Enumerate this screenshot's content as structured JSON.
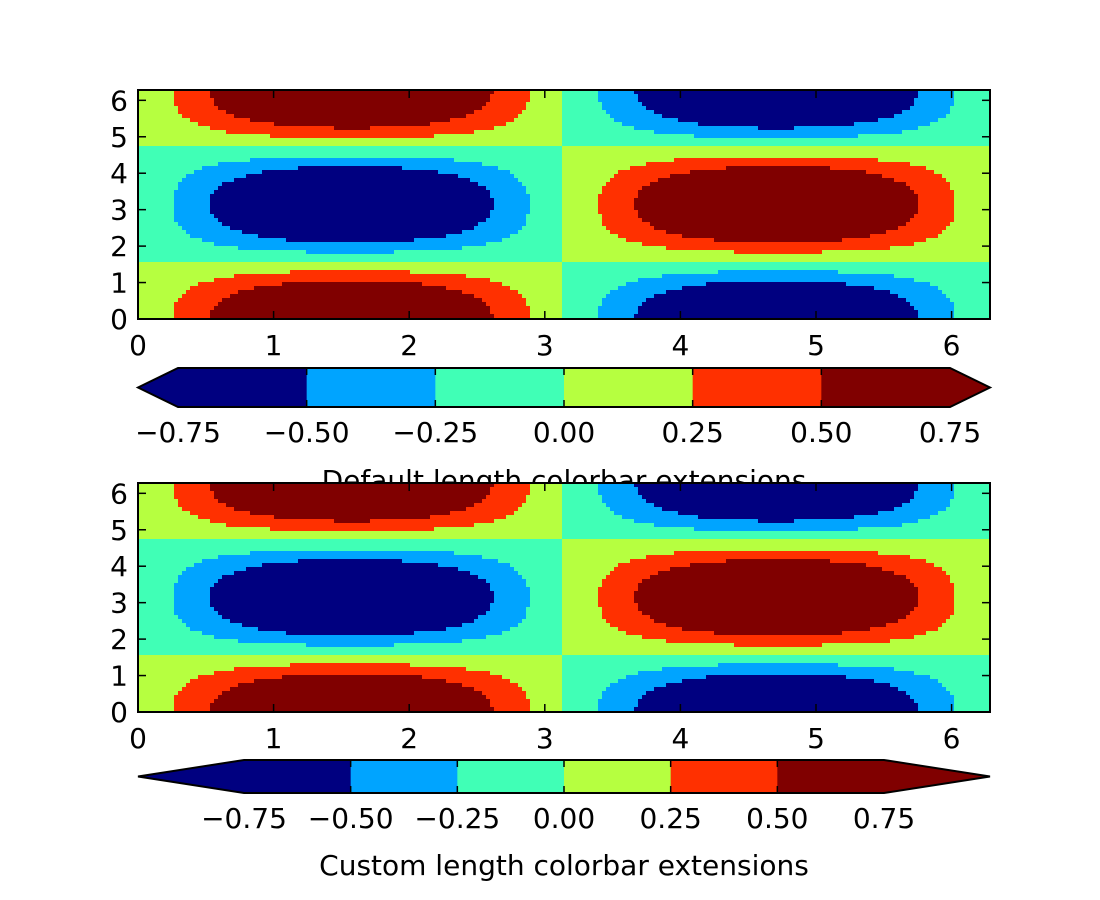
{
  "chart_data": [
    {
      "type": "contour",
      "function": "sin(x)*cos(y)",
      "x_range": [
        0,
        6.2832
      ],
      "y_range": [
        0,
        6.2832
      ],
      "xticks": [
        "0",
        "1",
        "2",
        "3",
        "4",
        "5",
        "6"
      ],
      "yticks": [
        "0",
        "1",
        "2",
        "3",
        "4",
        "5",
        "6"
      ],
      "levels": [
        -1.0,
        -0.75,
        -0.5,
        -0.25,
        0.0,
        0.25,
        0.5,
        0.75,
        1.0
      ],
      "level_colors": [
        "#000080",
        "#00A4FF",
        "#40FFB6",
        "#B6FF40",
        "#FF3000",
        "#800000"
      ],
      "colorbar": {
        "boundaries": [
          -0.75,
          -0.5,
          -0.25,
          0.0,
          0.25,
          0.5,
          0.75
        ],
        "colors": [
          "#000080",
          "#00A4FF",
          "#40FFB6",
          "#B6FF40",
          "#FF3000",
          "#800000"
        ],
        "ticks": [
          "−0.75",
          "−0.50",
          "−0.25",
          "0.00",
          "0.25",
          "0.50",
          "0.75"
        ],
        "extend": "both",
        "extension_length": "default",
        "label": "Default length colorbar extensions"
      }
    },
    {
      "type": "contour",
      "function": "sin(x)*cos(y)",
      "x_range": [
        0,
        6.2832
      ],
      "y_range": [
        0,
        6.2832
      ],
      "xticks": [
        "0",
        "1",
        "2",
        "3",
        "4",
        "5",
        "6"
      ],
      "yticks": [
        "0",
        "1",
        "2",
        "3",
        "4",
        "5",
        "6"
      ],
      "levels": [
        -1.0,
        -0.75,
        -0.5,
        -0.25,
        0.0,
        0.25,
        0.5,
        0.75,
        1.0
      ],
      "level_colors": [
        "#000080",
        "#00A4FF",
        "#40FFB6",
        "#B6FF40",
        "#FF3000",
        "#800000"
      ],
      "colorbar": {
        "boundaries": [
          -0.75,
          -0.5,
          -0.25,
          0.0,
          0.25,
          0.5,
          0.75
        ],
        "colors": [
          "#000080",
          "#00A4FF",
          "#40FFB6",
          "#B6FF40",
          "#FF3000",
          "#800000"
        ],
        "ticks": [
          "−0.75",
          "−0.50",
          "−0.25",
          "0.00",
          "0.25",
          "0.50",
          "0.75"
        ],
        "extend": "both",
        "extension_length": "custom",
        "label": "Custom length colorbar extensions"
      }
    }
  ]
}
